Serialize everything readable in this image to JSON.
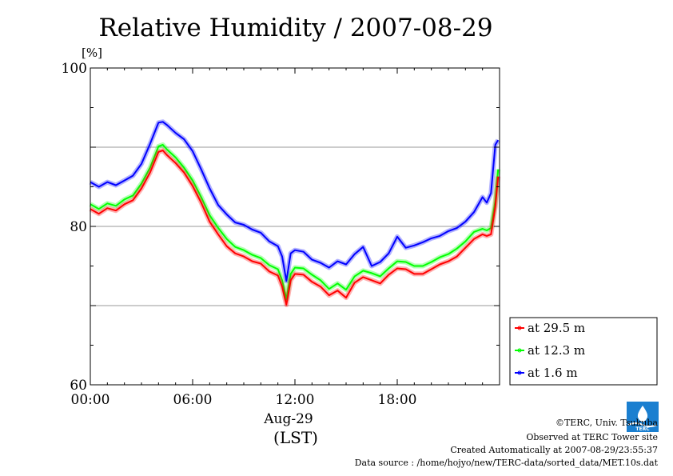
{
  "chart_data": {
    "type": "line",
    "title": "Relative Humidity / 2007-08-29",
    "yunit": "[%]",
    "ylim": [
      60,
      100
    ],
    "yticks": [
      "60",
      "80",
      "100"
    ],
    "ygrid": [
      70,
      80,
      90
    ],
    "xlim": [
      "00:00",
      "24:00"
    ],
    "xticks": [
      "00:00",
      "06:00",
      "12:00",
      "18:00"
    ],
    "xdate": "Aug-29",
    "xtimezone": "(LST)",
    "legend_position": "right",
    "series": [
      {
        "name": "at 29.5 m",
        "color": "#ff0000",
        "x": [
          "00:00",
          "00:30",
          "01:00",
          "01:30",
          "02:00",
          "02:30",
          "03:00",
          "03:30",
          "04:00",
          "04:15",
          "04:30",
          "05:00",
          "05:30",
          "06:00",
          "06:30",
          "07:00",
          "07:30",
          "08:00",
          "08:30",
          "09:00",
          "09:30",
          "10:00",
          "10:30",
          "11:00",
          "11:15",
          "11:30",
          "11:45",
          "12:00",
          "12:30",
          "13:00",
          "13:30",
          "14:00",
          "14:30",
          "15:00",
          "15:30",
          "16:00",
          "16:30",
          "17:00",
          "17:30",
          "18:00",
          "18:30",
          "19:00",
          "19:30",
          "20:00",
          "20:30",
          "21:00",
          "21:30",
          "22:00",
          "22:30",
          "23:00",
          "23:15",
          "23:30",
          "23:45",
          "23:55"
        ],
        "values": [
          82.2,
          81.6,
          82.3,
          82.0,
          82.8,
          83.3,
          84.8,
          86.8,
          89.4,
          89.6,
          89.0,
          88.0,
          86.8,
          85.1,
          83.0,
          80.6,
          79.0,
          77.5,
          76.6,
          76.2,
          75.6,
          75.3,
          74.3,
          73.8,
          72.4,
          70.1,
          73.2,
          74.0,
          73.9,
          73.0,
          72.4,
          71.3,
          71.9,
          71.0,
          72.9,
          73.6,
          73.2,
          72.8,
          73.9,
          74.7,
          74.6,
          74.0,
          74.0,
          74.6,
          75.2,
          75.6,
          76.2,
          77.3,
          78.4,
          79.0,
          78.8,
          79.0,
          82.5,
          86.3
        ]
      },
      {
        "name": "at 12.3 m",
        "color": "#00ff00",
        "x": [
          "00:00",
          "00:30",
          "01:00",
          "01:30",
          "02:00",
          "02:30",
          "03:00",
          "03:30",
          "04:00",
          "04:15",
          "04:30",
          "05:00",
          "05:30",
          "06:00",
          "06:30",
          "07:00",
          "07:30",
          "08:00",
          "08:30",
          "09:00",
          "09:30",
          "10:00",
          "10:30",
          "11:00",
          "11:15",
          "11:30",
          "11:45",
          "12:00",
          "12:30",
          "13:00",
          "13:30",
          "14:00",
          "14:30",
          "15:00",
          "15:30",
          "16:00",
          "16:30",
          "17:00",
          "17:30",
          "18:00",
          "18:30",
          "19:00",
          "19:30",
          "20:00",
          "20:30",
          "21:00",
          "21:30",
          "22:00",
          "22:30",
          "23:00",
          "23:15",
          "23:30",
          "23:45",
          "23:55"
        ],
        "values": [
          82.8,
          82.2,
          82.9,
          82.6,
          83.4,
          83.9,
          85.4,
          87.4,
          90.1,
          90.3,
          89.7,
          88.7,
          87.4,
          85.8,
          83.7,
          81.4,
          79.8,
          78.4,
          77.4,
          77.0,
          76.4,
          76.0,
          75.1,
          74.6,
          73.2,
          70.8,
          74.0,
          74.8,
          74.7,
          73.9,
          73.2,
          72.1,
          72.8,
          72.0,
          73.7,
          74.4,
          74.1,
          73.7,
          74.7,
          75.6,
          75.5,
          75.0,
          75.0,
          75.5,
          76.1,
          76.5,
          77.2,
          78.1,
          79.3,
          79.7,
          79.5,
          79.8,
          83.2,
          87.2
        ]
      },
      {
        "name": "at 1.6 m",
        "color": "#0000ff",
        "x": [
          "00:00",
          "00:30",
          "01:00",
          "01:30",
          "02:00",
          "02:30",
          "03:00",
          "03:30",
          "04:00",
          "04:15",
          "04:30",
          "05:00",
          "05:30",
          "06:00",
          "06:30",
          "07:00",
          "07:30",
          "08:00",
          "08:30",
          "09:00",
          "09:30",
          "10:00",
          "10:30",
          "11:00",
          "11:15",
          "11:30",
          "11:45",
          "12:00",
          "12:30",
          "13:00",
          "13:30",
          "14:00",
          "14:30",
          "15:00",
          "15:30",
          "16:00",
          "16:30",
          "17:00",
          "17:30",
          "18:00",
          "18:30",
          "19:00",
          "19:30",
          "20:00",
          "20:30",
          "21:00",
          "21:30",
          "22:00",
          "22:30",
          "23:00",
          "23:15",
          "23:30",
          "23:45",
          "23:55"
        ],
        "values": [
          85.6,
          85.0,
          85.6,
          85.2,
          85.8,
          86.4,
          87.9,
          90.4,
          93.1,
          93.2,
          92.8,
          91.8,
          91.0,
          89.5,
          87.2,
          84.8,
          82.7,
          81.5,
          80.5,
          80.2,
          79.6,
          79.2,
          78.1,
          77.5,
          76.2,
          73.1,
          76.6,
          77.0,
          76.8,
          75.8,
          75.4,
          74.8,
          75.6,
          75.2,
          76.5,
          77.4,
          75.0,
          75.5,
          76.6,
          78.7,
          77.3,
          77.6,
          78.0,
          78.5,
          78.8,
          79.4,
          79.8,
          80.6,
          81.8,
          83.7,
          83.0,
          84.2,
          90.3,
          90.9
        ]
      }
    ]
  },
  "footer": {
    "copyright": "©TERC, Univ. Tsukuba",
    "observed": "Observed at TERC Tower site",
    "created": "Created Automatically at 2007-08-29/23:55:37",
    "source": "Data source : /home/hojyo/new/TERC-data/sorted_data/MET.10s.dat"
  },
  "logo": {
    "text": "TERC",
    "color": "#1a7fd0"
  }
}
